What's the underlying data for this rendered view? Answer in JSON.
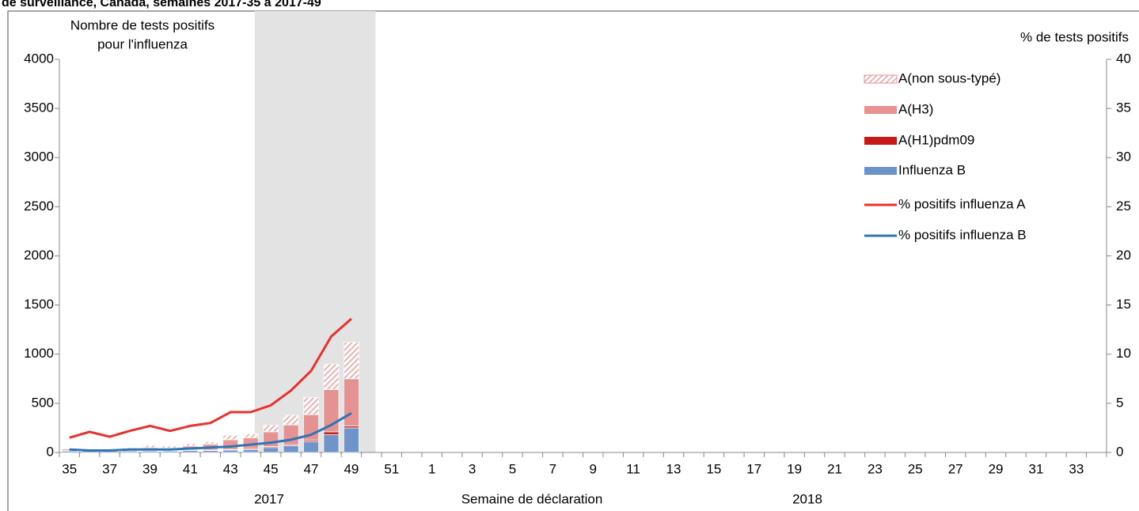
{
  "chart_data": {
    "type": "bar",
    "title": "de surveillance, Canada, semaines 2017-35 à 2017-49",
    "ylabel_lines": [
      "Nombre de tests positifs",
      "pour l'influenza"
    ],
    "y2label": "% de tests positifs",
    "xlabel": "Semaine de déclaration",
    "year_labels": [
      "2017",
      "2018"
    ],
    "categories": [
      "35",
      null,
      "37",
      null,
      "39",
      null,
      "41",
      null,
      "43",
      null,
      "45",
      null,
      "47",
      null,
      "49",
      null,
      "51",
      null,
      "1",
      null,
      "3",
      null,
      "5",
      null,
      "7",
      null,
      "9",
      null,
      "11",
      null,
      "13",
      null,
      "15",
      null,
      "17",
      null,
      "19",
      null,
      "21",
      null,
      "23",
      null,
      "25",
      null,
      "27",
      null,
      "29",
      null,
      "31",
      null,
      "33",
      null
    ],
    "ylim": [
      0,
      4000
    ],
    "yticks": [
      0,
      500,
      1000,
      1500,
      2000,
      2500,
      3000,
      3500,
      4000
    ],
    "y2lim": [
      0,
      40
    ],
    "y2ticks": [
      0,
      5,
      10,
      15,
      20,
      25,
      30,
      35,
      40
    ],
    "legend": "top-right",
    "series": [
      {
        "name": "A(non sous-typé)",
        "type": "bar",
        "color": "#e58585",
        "hatch": true,
        "values": [
          5,
          5,
          5,
          10,
          25,
          20,
          25,
          25,
          45,
          40,
          70,
          100,
          175,
          260,
          370,
          null,
          null,
          null,
          null,
          null,
          null,
          null,
          null,
          null,
          null,
          null,
          null,
          null,
          null,
          null,
          null,
          null,
          null,
          null,
          null,
          null,
          null,
          null,
          null,
          null,
          null,
          null,
          null,
          null,
          null,
          null,
          null,
          null,
          null,
          null,
          null,
          null
        ]
      },
      {
        "name": "A(H3)",
        "type": "bar",
        "color": "#e58585",
        "values": [
          15,
          5,
          10,
          20,
          30,
          25,
          40,
          60,
          100,
          110,
          150,
          200,
          260,
          430,
          480,
          null,
          null,
          null,
          null,
          null,
          null,
          null,
          null,
          null,
          null,
          null,
          null,
          null,
          null,
          null,
          null,
          null,
          null,
          null,
          null,
          null,
          null,
          null,
          null,
          null,
          null,
          null,
          null,
          null,
          null,
          null,
          null,
          null,
          null,
          null,
          null,
          null
        ]
      },
      {
        "name": "A(H1)pdm09",
        "type": "bar",
        "color": "#c00000",
        "values": [
          5,
          5,
          5,
          5,
          5,
          5,
          5,
          5,
          5,
          10,
          10,
          10,
          15,
          30,
          20,
          null,
          null,
          null,
          null,
          null,
          null,
          null,
          null,
          null,
          null,
          null,
          null,
          null,
          null,
          null,
          null,
          null,
          null,
          null,
          null,
          null,
          null,
          null,
          null,
          null,
          null,
          null,
          null,
          null,
          null,
          null,
          null,
          null,
          null,
          null,
          null,
          null
        ]
      },
      {
        "name": "Influenza B",
        "type": "bar",
        "color": "#5b87c5",
        "values": [
          15,
          15,
          15,
          15,
          15,
          15,
          20,
          20,
          25,
          30,
          50,
          70,
          110,
          180,
          250,
          null,
          null,
          null,
          null,
          null,
          null,
          null,
          null,
          null,
          null,
          null,
          null,
          null,
          null,
          null,
          null,
          null,
          null,
          null,
          null,
          null,
          null,
          null,
          null,
          null,
          null,
          null,
          null,
          null,
          null,
          null,
          null,
          null,
          null,
          null,
          null,
          null
        ]
      },
      {
        "name": "% positifs influenza A",
        "type": "line",
        "axis": "y2",
        "color": "#e8312f",
        "values": [
          1.5,
          2.1,
          1.6,
          2.2,
          2.7,
          2.2,
          2.7,
          3.0,
          4.1,
          4.1,
          4.8,
          6.3,
          8.3,
          11.8,
          13.6,
          null,
          null,
          null,
          null,
          null,
          null,
          null,
          null,
          null,
          null,
          null,
          null,
          null,
          null,
          null,
          null,
          null,
          null,
          null,
          null,
          null,
          null,
          null,
          null,
          null,
          null,
          null,
          null,
          null,
          null,
          null,
          null,
          null,
          null,
          null,
          null,
          null
        ]
      },
      {
        "name": "% positifs influenza B",
        "type": "line",
        "axis": "y2",
        "color": "#2e75b6",
        "values": [
          0.3,
          0.2,
          0.2,
          0.3,
          0.3,
          0.3,
          0.4,
          0.5,
          0.6,
          0.8,
          1.0,
          1.3,
          1.8,
          2.8,
          4.0,
          null,
          null,
          null,
          null,
          null,
          null,
          null,
          null,
          null,
          null,
          null,
          null,
          null,
          null,
          null,
          null,
          null,
          null,
          null,
          null,
          null,
          null,
          null,
          null,
          null,
          null,
          null,
          null,
          null,
          null,
          null,
          null,
          null,
          null,
          null,
          null,
          null
        ]
      }
    ]
  }
}
